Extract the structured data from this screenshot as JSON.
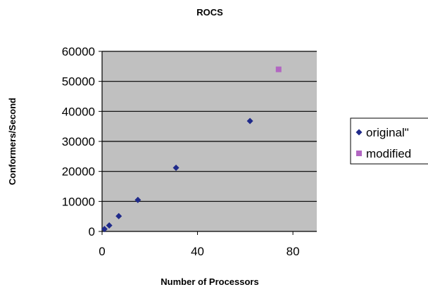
{
  "chart_data": {
    "type": "scatter",
    "title": "ROCS",
    "xlabel": "Number of Processors",
    "ylabel": "Conformers/Second",
    "xlim": [
      0,
      90
    ],
    "ylim": [
      0,
      60000
    ],
    "x_ticks": [
      "0",
      "40",
      "80"
    ],
    "y_ticks": [
      "0",
      "10000",
      "20000",
      "30000",
      "40000",
      "50000",
      "60000"
    ],
    "grid": "horizontal",
    "plot_background": "#c0c0c0",
    "legend_position": "right",
    "series": [
      {
        "name": "original\"",
        "marker": "diamond",
        "color": "#1f2a8a",
        "points": [
          [
            1,
            800
          ],
          [
            3,
            2000
          ],
          [
            7,
            5100
          ],
          [
            15,
            10500
          ],
          [
            31,
            21200
          ],
          [
            62,
            36800
          ]
        ]
      },
      {
        "name": "modified",
        "marker": "square",
        "color": "#b266c2",
        "points": [
          [
            74,
            54000
          ]
        ]
      }
    ]
  }
}
